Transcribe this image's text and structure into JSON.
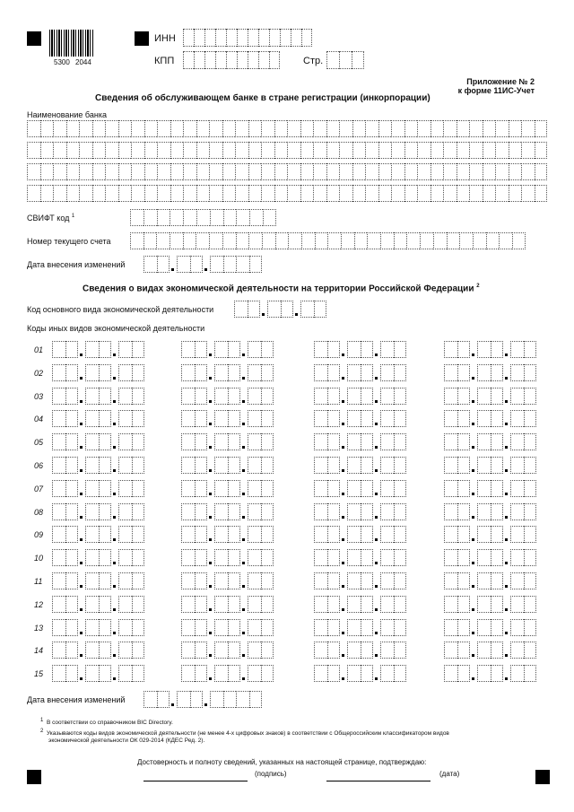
{
  "header": {
    "barcode_numbers": [
      "5300",
      "2044"
    ],
    "inn_label": "ИНН",
    "inn_value": "",
    "kpp_label": "КПП",
    "kpp_value": "",
    "page_label": "Стр.",
    "page_value": ""
  },
  "appendix": {
    "line1": "Приложение № 2",
    "line2": "к форме 11ИС-Учет"
  },
  "bank_section": {
    "title": "Сведения об обслуживающем банке в стране регистрации (инкорпорации)",
    "bank_name_label": "Наименование банка",
    "bank_name_value": "",
    "swift_label": "СВИФТ код",
    "swift_footnote": "1",
    "swift_value": "",
    "account_label": "Номер текущего счета",
    "account_value": "",
    "change_date_label": "Дата внесения изменений",
    "change_date_value": ""
  },
  "activity_section": {
    "title": "Сведения о видах экономической деятельности на территории Российской Федерации",
    "title_footnote": "2",
    "main_code_label": "Код основного вида экономической деятельности",
    "main_code_value": "",
    "other_codes_label": "Коды иных видов экономической деятельности",
    "rows": [
      "01",
      "02",
      "03",
      "04",
      "05",
      "06",
      "07",
      "08",
      "09",
      "10",
      "11",
      "12",
      "13",
      "14",
      "15"
    ],
    "change_date_label": "Дата внесения изменений",
    "change_date_value": ""
  },
  "footnotes": [
    {
      "mark": "1",
      "text": "В соответствии со справочником BIC Directory."
    },
    {
      "mark": "2",
      "text": "Указываются коды видов экономической деятельности (не менее 4-х цифровых знаков) в соответствии с Общероссийским классификатором видов",
      "text2": "экономической деятельности ОК 029-2014 (КДЕС Ред. 2)."
    }
  ],
  "signature": {
    "statement": "Достоверность и полноту сведений, указанных на настоящей странице, подтверждаю:",
    "signature_label": "(подпись)",
    "date_label": "(дата)"
  }
}
